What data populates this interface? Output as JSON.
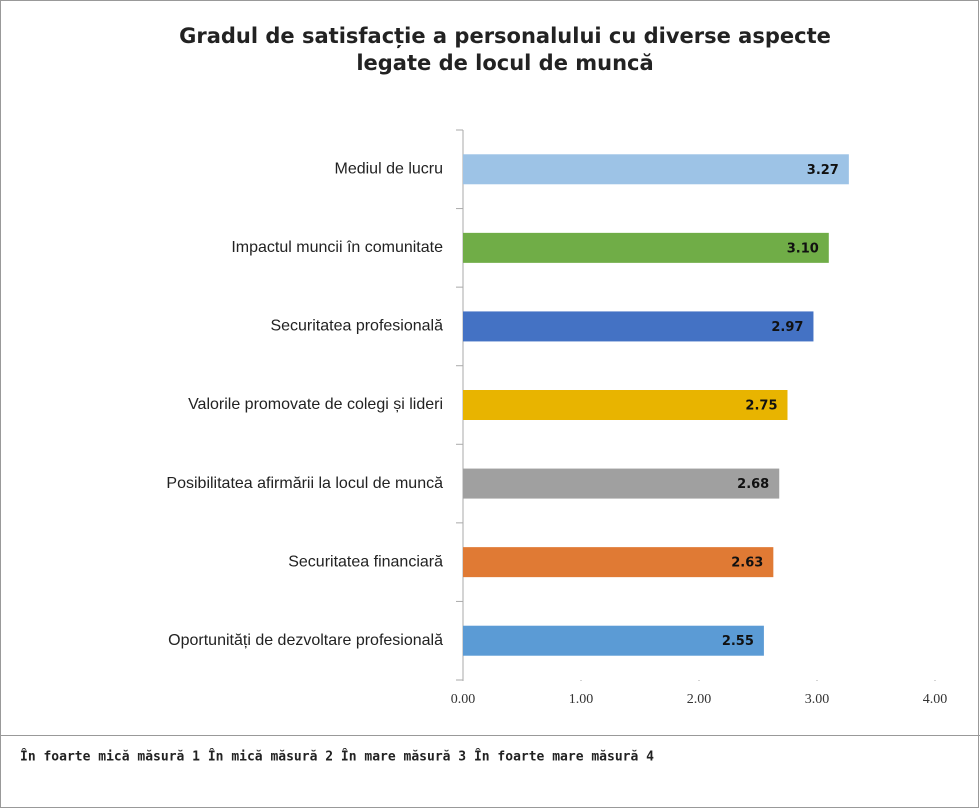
{
  "chart_data": {
    "type": "hbar",
    "title": [
      "Gradul de satisfacție a personalului cu diverse aspecte",
      "legate de locul de muncă"
    ],
    "categories": [
      "Mediul de lucru",
      "Impactul muncii în comunitate",
      "Securitatea profesională",
      "Valorile promovate de colegi și lideri",
      "Posibilitatea afirmării la locul de muncă",
      "Securitatea financiară",
      "Oportunități de dezvoltare profesională"
    ],
    "values": [
      3.27,
      3.1,
      2.97,
      2.75,
      2.68,
      2.63,
      2.55
    ],
    "value_labels": [
      "3.27",
      "3.10",
      "2.97",
      "2.75",
      "2.68",
      "2.63",
      "2.55"
    ],
    "colors": [
      "#9dc3e6",
      "#70ad47",
      "#4472c4",
      "#e8b400",
      "#a0a0a0",
      "#e07a34",
      "#5b9bd5"
    ],
    "xlim": [
      0,
      4
    ],
    "xticks": [
      {
        "value": 0,
        "label": "0.00"
      },
      {
        "value": 1,
        "label": "1.00"
      },
      {
        "value": 2,
        "label": "2.00"
      },
      {
        "value": 3,
        "label": "3.00"
      },
      {
        "value": 4,
        "label": "4.00"
      }
    ],
    "footnote": "În foarte mică măsură 1 În mică măsură 2 În mare măsură 3 În foarte mare măsură 4"
  }
}
